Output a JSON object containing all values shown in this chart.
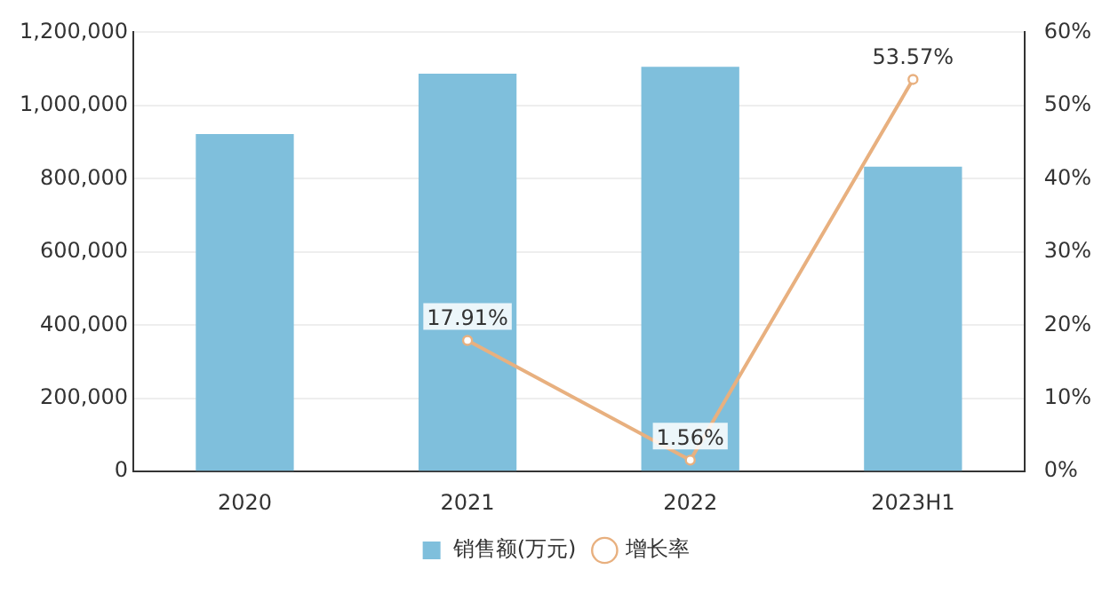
{
  "chart_data": {
    "type": "bar",
    "categories": [
      "2020",
      "2021",
      "2022",
      "2023H1"
    ],
    "series": [
      {
        "name": "销售额(万元)",
        "color": "#7fbfdc",
        "values": [
          922000,
          1087000,
          1106000,
          833000
        ]
      },
      {
        "name": "增长率",
        "type": "line",
        "axis": "y2",
        "color": "#e8b07f",
        "values": [
          null,
          17.91,
          1.56,
          53.57
        ],
        "value_labels": [
          null,
          "17.91%",
          "1.56%",
          "53.57%"
        ]
      }
    ],
    "ylim": [
      0,
      1200000
    ],
    "yticks": [
      {
        "value": 0,
        "label": "0"
      },
      {
        "value": 200000,
        "label": "200,000"
      },
      {
        "value": 400000,
        "label": "400,000"
      },
      {
        "value": 600000,
        "label": "600,000"
      },
      {
        "value": 800000,
        "label": "800,000"
      },
      {
        "value": 1000000,
        "label": "1,000,000"
      },
      {
        "value": 1200000,
        "label": "1,200,000"
      }
    ],
    "y2lim": [
      0,
      60
    ],
    "y2ticks": [
      {
        "value": 0,
        "label": "0%"
      },
      {
        "value": 10,
        "label": "10%"
      },
      {
        "value": 20,
        "label": "20%"
      },
      {
        "value": 30,
        "label": "30%"
      },
      {
        "value": 40,
        "label": "40%"
      },
      {
        "value": 50,
        "label": "50%"
      },
      {
        "value": 60,
        "label": "60%"
      }
    ],
    "grid": "y",
    "legend": "bottom",
    "marker": "circle",
    "line_style": "solid"
  }
}
